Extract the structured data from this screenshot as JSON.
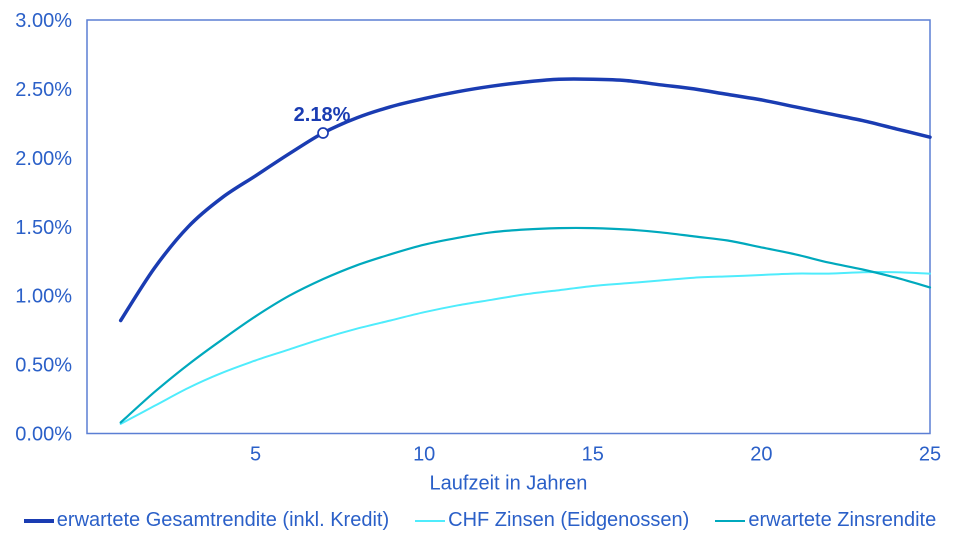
{
  "chart_data": {
    "type": "line",
    "title": "",
    "xlabel": "Laufzeit in Jahren",
    "ylabel": "",
    "grid": false,
    "legend_position": "bottom",
    "xlim": [
      0,
      25
    ],
    "ylim": [
      0,
      3
    ],
    "x_axis": {
      "label": "Laufzeit in Jahren",
      "ticks": [
        {
          "value": 5,
          "label": "5"
        },
        {
          "value": 10,
          "label": "10"
        },
        {
          "value": 15,
          "label": "15"
        },
        {
          "value": 20,
          "label": "20"
        },
        {
          "value": 25,
          "label": "25"
        }
      ]
    },
    "y_axis": {
      "ticks": [
        {
          "value": 0.0,
          "label": "0.00%"
        },
        {
          "value": 0.5,
          "label": "0.50%"
        },
        {
          "value": 1.0,
          "label": "1.00%"
        },
        {
          "value": 1.5,
          "label": "1.50%"
        },
        {
          "value": 2.0,
          "label": "2.00%"
        },
        {
          "value": 2.5,
          "label": "2.50%"
        },
        {
          "value": 3.0,
          "label": "3.00%"
        }
      ]
    },
    "x": [
      1,
      2,
      3,
      4,
      5,
      6,
      7,
      8,
      9,
      10,
      11,
      12,
      13,
      14,
      15,
      16,
      17,
      18,
      19,
      20,
      21,
      22,
      23,
      24,
      25
    ],
    "series": [
      {
        "name": "erwartete Gesamtrendite (inkl. Kredit)",
        "color": "#1a3cb2",
        "width": 3.5,
        "values": [
          0.82,
          1.2,
          1.5,
          1.71,
          1.87,
          2.03,
          2.18,
          2.29,
          2.37,
          2.43,
          2.48,
          2.52,
          2.55,
          2.57,
          2.57,
          2.56,
          2.53,
          2.5,
          2.46,
          2.42,
          2.37,
          2.32,
          2.27,
          2.21,
          2.15
        ]
      },
      {
        "name": "CHF Zinsen (Eidgenossen)",
        "color": "#4fecfc",
        "width": 2,
        "values": [
          0.07,
          0.2,
          0.33,
          0.44,
          0.53,
          0.61,
          0.69,
          0.76,
          0.82,
          0.88,
          0.93,
          0.97,
          1.01,
          1.04,
          1.07,
          1.09,
          1.11,
          1.13,
          1.14,
          1.15,
          1.16,
          1.16,
          1.17,
          1.17,
          1.16
        ]
      },
      {
        "name": "erwartete Zinsrendite",
        "color": "#00a9bd",
        "width": 2.2,
        "values": [
          0.08,
          0.3,
          0.5,
          0.68,
          0.85,
          1.0,
          1.12,
          1.22,
          1.3,
          1.37,
          1.42,
          1.46,
          1.48,
          1.49,
          1.49,
          1.48,
          1.46,
          1.43,
          1.4,
          1.35,
          1.3,
          1.24,
          1.19,
          1.13,
          1.06
        ]
      }
    ],
    "annotation": {
      "label": "2.18%",
      "x": 7,
      "y": 2.18
    },
    "colors": {
      "axis_text": "#2b60c8",
      "border": "#5b7fd4",
      "annotation": "#1a3cb2"
    }
  }
}
